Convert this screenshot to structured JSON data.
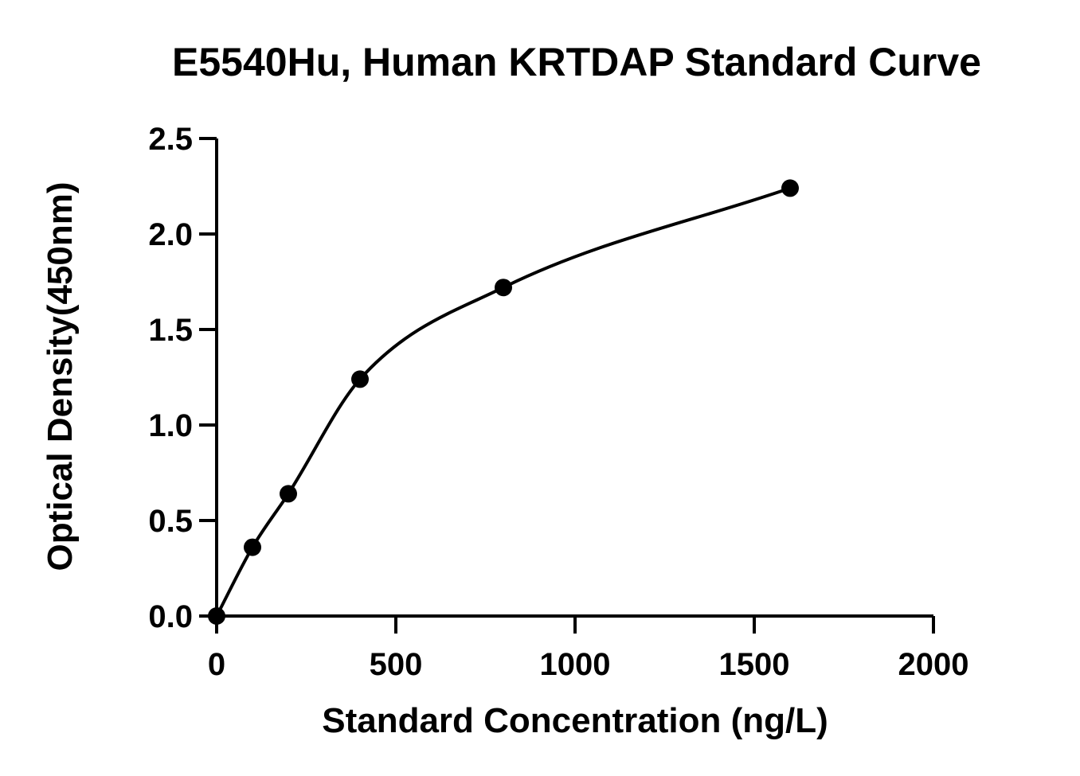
{
  "chart_data": {
    "type": "scatter",
    "title": "E5540Hu, Human KRTDAP Standard Curve",
    "xlabel": "Standard Concentration (ng/L)",
    "ylabel": "Optical Density(450nm)",
    "xlim": [
      0,
      2000
    ],
    "ylim": [
      0,
      2.5
    ],
    "x_ticks": [
      0,
      500,
      1000,
      1500,
      2000
    ],
    "y_ticks": [
      0.0,
      0.5,
      1.0,
      1.5,
      2.0,
      2.5
    ],
    "x_tick_labels": [
      "0",
      "500",
      "1000",
      "1500",
      "2000"
    ],
    "y_tick_labels": [
      "0.0",
      "0.5",
      "1.0",
      "1.5",
      "2.0",
      "2.5"
    ],
    "grid": false,
    "series": [
      {
        "points": [
          {
            "x": 0,
            "y": 0.0
          },
          {
            "x": 100,
            "y": 0.36
          },
          {
            "x": 200,
            "y": 0.64
          },
          {
            "x": 400,
            "y": 1.24
          },
          {
            "x": 800,
            "y": 1.72
          },
          {
            "x": 1600,
            "y": 2.24
          }
        ],
        "fit_curve": true
      }
    ]
  }
}
